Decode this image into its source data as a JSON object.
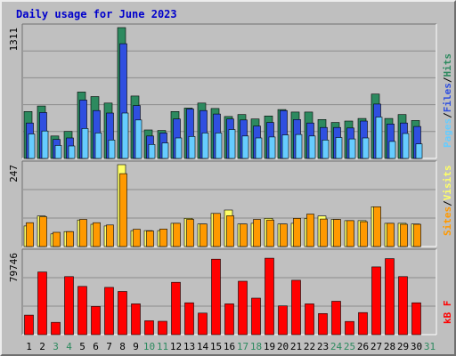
{
  "chart_data": {
    "type": "bar",
    "title": "Daily usage for June 2023",
    "colors": {
      "pages": "#66ccff",
      "files": "#2f4fe0",
      "hits": "#2d8a5f",
      "visits": "#ffff66",
      "sites": "#ff9900",
      "kbf": "#ff0000",
      "title": "#0000cc",
      "weekend_day": "#2d8a5f",
      "weekday": "#000000",
      "panel_bg": "#c0c0c0",
      "gridline": "#8c8c8c"
    },
    "x_labels": [
      "1",
      "2",
      "3",
      "4",
      "5",
      "6",
      "7",
      "8",
      "9",
      "10",
      "11",
      "12",
      "13",
      "14",
      "15",
      "16",
      "17",
      "18",
      "19",
      "20",
      "21",
      "22",
      "23",
      "24",
      "25",
      "26",
      "27",
      "28",
      "29",
      "30",
      "31"
    ],
    "weekend_days": [
      "3",
      "4",
      "10",
      "11",
      "17",
      "18",
      "24",
      "25",
      "31"
    ],
    "panels": [
      {
        "name": "hits-files-pages",
        "ymax_label": "1311",
        "ymax": 1311,
        "legend": [
          "Pages",
          "/",
          "Files",
          "/",
          "Hits"
        ],
        "legend_colors": [
          "#66ccff",
          "#000000",
          "#2f4fe0",
          "#000000",
          "#2d8a5f"
        ],
        "series": [
          {
            "name": "Hits",
            "color": "#2d8a5f",
            "values": [
              470,
              525,
              225,
              270,
              665,
              620,
              555,
              1311,
              625,
              285,
              280,
              470,
              505,
              555,
              500,
              420,
              440,
              395,
              425,
              490,
              465,
              465,
              390,
              360,
              375,
              400,
              645,
              400,
              440,
              380,
              0
            ]
          },
          {
            "name": "Files",
            "color": "#2f4fe0",
            "values": [
              355,
              460,
              190,
              205,
              585,
              480,
              455,
              1150,
              530,
              225,
              255,
              395,
              495,
              480,
              445,
              395,
              385,
              325,
              360,
              480,
              390,
              355,
              310,
              310,
              305,
              375,
              545,
              345,
              355,
              320,
              0
            ]
          },
          {
            "name": "Pages",
            "color": "#66ccff",
            "values": [
              245,
              275,
              130,
              125,
              300,
              255,
              185,
              455,
              385,
              140,
              155,
              205,
              220,
              255,
              255,
              290,
              225,
              205,
              215,
              235,
              240,
              225,
              185,
              210,
              195,
              205,
              415,
              170,
              250,
              145,
              0
            ]
          }
        ]
      },
      {
        "name": "visits-sites",
        "ymax_label": "247",
        "ymax": 247,
        "legend": [
          "Sites",
          "/",
          "Visits"
        ],
        "legend_colors": [
          "#ff9900",
          "#000000",
          "#ffff66"
        ],
        "series": [
          {
            "name": "Visits",
            "color": "#ffff66",
            "values": [
              62,
              92,
              38,
              45,
              80,
              67,
              62,
              247,
              48,
              48,
              48,
              70,
              85,
              68,
              100,
              110,
              68,
              70,
              85,
              68,
              70,
              85,
              92,
              82,
              78,
              78,
              120,
              70,
              70,
              68,
              0
            ]
          },
          {
            "name": "Sites",
            "color": "#ff9900",
            "values": [
              72,
              90,
              43,
              45,
              82,
              72,
              65,
              220,
              52,
              47,
              53,
              70,
              82,
              68,
              100,
              93,
              68,
              82,
              80,
              68,
              85,
              98,
              83,
              82,
              78,
              75,
              120,
              70,
              67,
              67,
              0
            ]
          }
        ]
      },
      {
        "name": "kbf",
        "ymax_label": "79746",
        "ymax": 79746,
        "legend": [
          "kB F"
        ],
        "legend_colors": [
          "#ff0000"
        ],
        "series": [
          {
            "name": "kB F",
            "color": "#ff0000",
            "values": [
              19000,
              61000,
              12000,
              56500,
              47000,
              27500,
              46000,
              42000,
              30000,
              13500,
              13000,
              51000,
              31000,
              21000,
              73500,
              30000,
              52000,
              35500,
              74500,
              28000,
              53000,
              30000,
              20500,
              32500,
              12800,
              21500,
              66000,
              74000,
              56500,
              31000,
              0
            ]
          }
        ]
      }
    ]
  }
}
